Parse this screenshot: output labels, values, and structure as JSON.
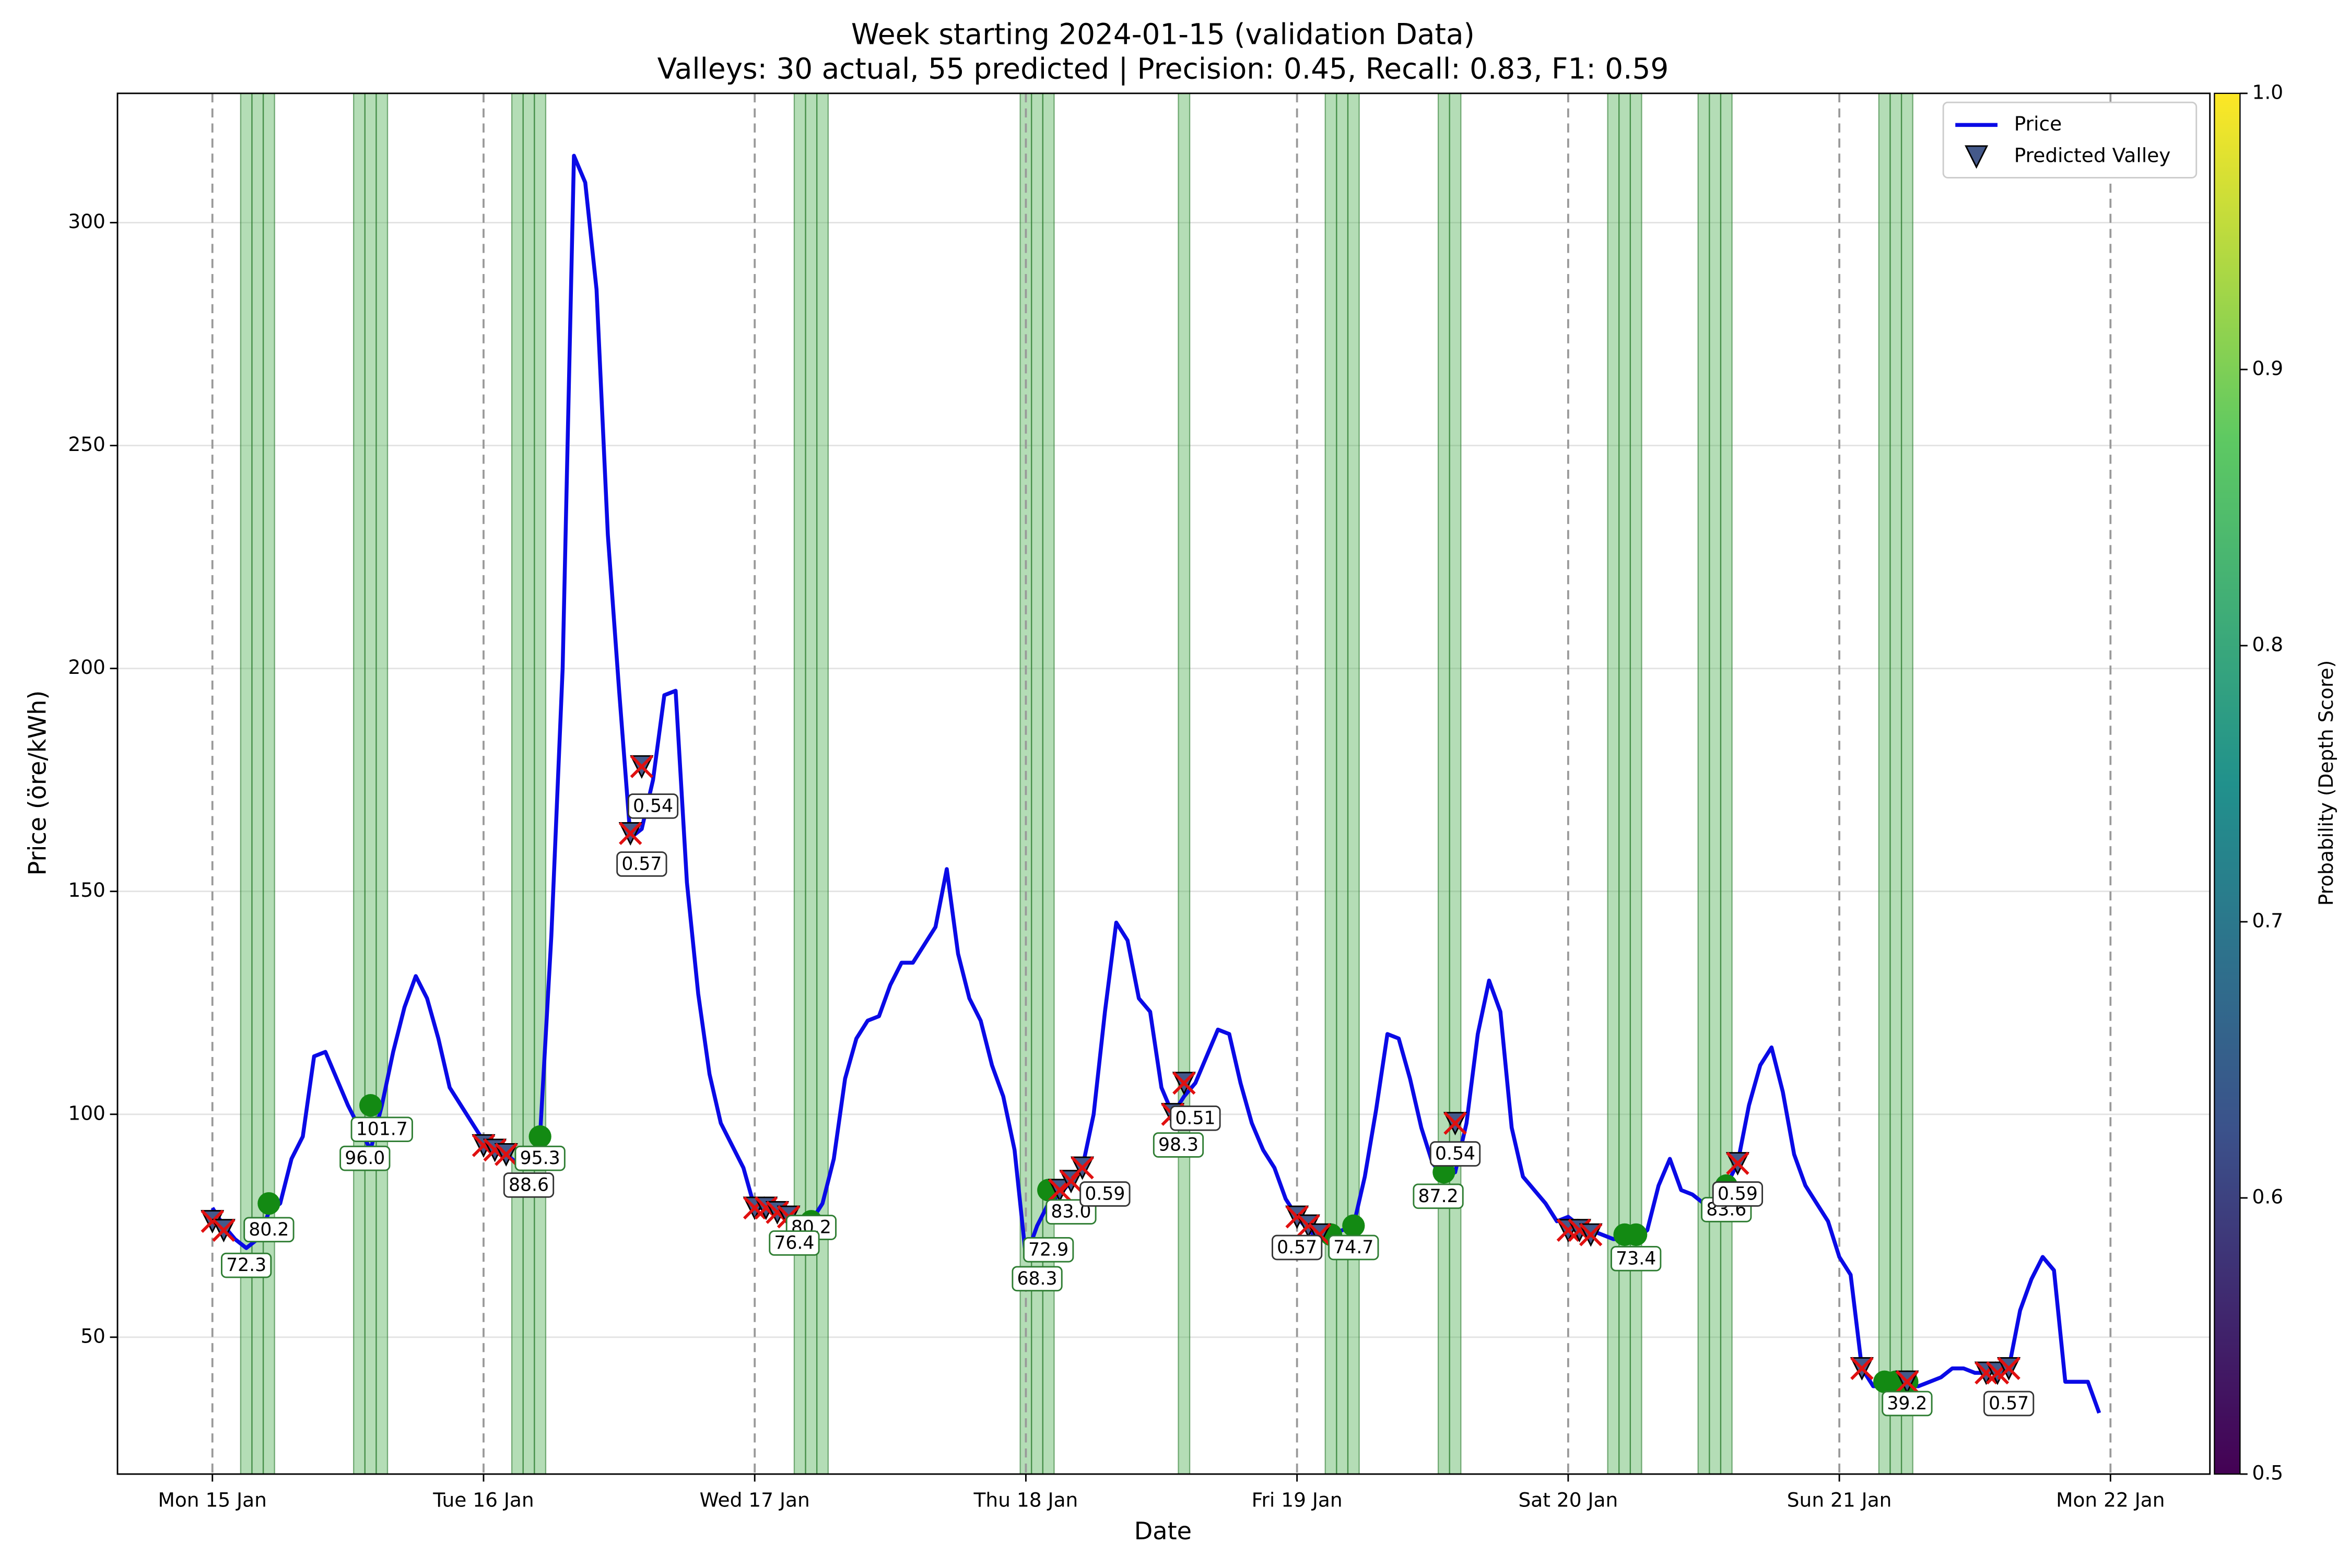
{
  "chart_data": {
    "type": "line",
    "title": "Week starting 2024-01-15 (validation Data)",
    "subtitle": "Valleys: 30 actual, 55 predicted | Precision: 0.45, Recall: 0.83, F1: 0.59",
    "x_label": "Date",
    "y_label": "Price (öre/kWh)",
    "xlim": [
      -8.4,
      176.8
    ],
    "ylim": [
      19.3,
      329
    ],
    "xticks": [
      {
        "value": 0,
        "label": "Mon 15 Jan"
      },
      {
        "value": 24,
        "label": "Tue 16 Jan"
      },
      {
        "value": 48,
        "label": "Wed 17 Jan"
      },
      {
        "value": 72,
        "label": "Thu 18 Jan"
      },
      {
        "value": 96,
        "label": "Fri 19 Jan"
      },
      {
        "value": 120,
        "label": "Sat 20 Jan"
      },
      {
        "value": 144,
        "label": "Sun 21 Jan"
      },
      {
        "value": 168,
        "label": "Mon 22 Jan"
      }
    ],
    "yticks": [
      50,
      100,
      150,
      200,
      250,
      300
    ],
    "grid": true,
    "legend": "upper right",
    "x": [
      0,
      1,
      2,
      3,
      4,
      5,
      6,
      7,
      8,
      9,
      10,
      11,
      12,
      13,
      14,
      15,
      16,
      17,
      18,
      19,
      20,
      21,
      22,
      23,
      24,
      25,
      26,
      27,
      28,
      29,
      30,
      31,
      32,
      33,
      34,
      35,
      36,
      37,
      38,
      39,
      40,
      41,
      42,
      43,
      44,
      45,
      46,
      47,
      48,
      49,
      50,
      51,
      52,
      53,
      54,
      55,
      56,
      57,
      58,
      59,
      60,
      61,
      62,
      63,
      64,
      65,
      66,
      67,
      68,
      69,
      70,
      71,
      72,
      73,
      74,
      75,
      76,
      77,
      78,
      79,
      80,
      81,
      82,
      83,
      84,
      85,
      86,
      87,
      88,
      89,
      90,
      91,
      92,
      93,
      94,
      95,
      96,
      97,
      98,
      99,
      100,
      101,
      102,
      103,
      104,
      105,
      106,
      107,
      108,
      109,
      110,
      111,
      112,
      113,
      114,
      115,
      116,
      117,
      118,
      119,
      120,
      121,
      122,
      123,
      124,
      125,
      126,
      127,
      128,
      129,
      130,
      131,
      132,
      133,
      134,
      135,
      136,
      137,
      138,
      139,
      140,
      141,
      142,
      143,
      144,
      145,
      146,
      147,
      148,
      149,
      150,
      151,
      152,
      153,
      154,
      155,
      156,
      157,
      158,
      159,
      160,
      161,
      162,
      163,
      164,
      165,
      166,
      167
    ],
    "series": [
      {
        "name": "Price",
        "color": "#0a0ae6",
        "values": [
          79,
          75,
          72,
          70,
          72,
          78,
          80,
          90,
          95,
          113,
          114,
          108,
          102,
          97,
          92,
          102,
          114,
          124,
          131,
          126,
          117,
          106,
          102,
          98,
          94,
          93,
          91,
          89,
          90,
          95,
          140,
          200,
          315,
          309,
          285,
          230,
          195,
          162,
          164,
          175,
          194,
          195,
          152,
          127,
          109,
          98,
          93,
          88,
          79,
          79,
          78,
          77,
          76,
          76,
          80,
          90,
          108,
          117,
          121,
          122,
          129,
          134,
          134,
          138,
          142,
          155,
          136,
          126,
          121,
          111,
          104,
          92,
          68,
          75,
          80,
          82,
          85,
          88,
          100,
          123,
          143,
          139,
          126,
          123,
          106,
          100,
          104,
          107,
          113,
          119,
          118,
          107,
          98,
          92,
          88,
          81,
          77,
          74,
          72,
          73,
          74,
          75,
          86,
          101,
          118,
          117,
          108,
          97,
          89,
          86,
          87,
          98,
          118,
          130,
          123,
          97,
          86,
          83,
          80,
          76,
          77,
          75,
          74,
          73,
          72,
          72,
          72,
          74,
          84,
          90,
          83,
          82,
          80,
          81,
          84,
          89,
          102,
          111,
          115,
          105,
          91,
          84,
          80,
          76,
          68,
          64,
          43,
          39,
          39,
          39,
          39,
          39,
          40,
          41,
          43,
          43,
          42,
          42,
          43,
          43,
          56,
          63,
          68,
          65,
          40,
          40,
          40,
          33
        ]
      },
      {
        "name": "Predicted Valley",
        "color": "#44598a",
        "x": [
          0,
          1,
          24,
          25,
          26,
          37,
          38,
          48,
          49,
          50,
          51,
          75,
          76,
          77,
          85,
          86,
          96,
          97,
          98,
          110,
          120,
          121,
          122,
          135,
          146,
          150,
          157,
          158,
          159
        ],
        "values": [
          76,
          74,
          93,
          92,
          91,
          163,
          178,
          79,
          79,
          78,
          77,
          83,
          85,
          88,
          100,
          107,
          77,
          75,
          73,
          98,
          74,
          74,
          73,
          89,
          43,
          40,
          42,
          42,
          43
        ]
      }
    ],
    "matched": {
      "color": "#138a13",
      "x": [
        5,
        14,
        29,
        53,
        74,
        99,
        101,
        109,
        125,
        126,
        134,
        148,
        149,
        150
      ],
      "values": [
        80,
        102,
        95,
        76,
        83,
        73,
        75,
        87,
        73,
        73,
        84,
        40,
        40,
        40
      ]
    },
    "actual_valleys": {
      "color": "#4caf50",
      "x": [
        3,
        4,
        5,
        13,
        14,
        15,
        27,
        28,
        29,
        52,
        53,
        54,
        72,
        73,
        74,
        86,
        99,
        100,
        101,
        109,
        110,
        124,
        125,
        126,
        132,
        133,
        134,
        148,
        149,
        150
      ]
    },
    "annotations": [
      {
        "text": "80.2",
        "x": 5,
        "y": 74,
        "color": "#2e7d32"
      },
      {
        "text": "72.3",
        "x": 3,
        "y": 66,
        "color": "#2e7d32"
      },
      {
        "text": "101.7",
        "x": 15,
        "y": 96.5,
        "color": "#2e7d32"
      },
      {
        "text": "96.0",
        "x": 13.5,
        "y": 90,
        "color": "#2e7d32"
      },
      {
        "text": "95.3",
        "x": 29,
        "y": 90,
        "color": "#2e7d32"
      },
      {
        "text": "88.6",
        "x": 28,
        "y": 84,
        "color": "#333333"
      },
      {
        "text": "0.54",
        "x": 39,
        "y": 169,
        "color": "#333333"
      },
      {
        "text": "0.57",
        "x": 38,
        "y": 156,
        "color": "#333333"
      },
      {
        "text": "80.2",
        "x": 53,
        "y": 74.5,
        "color": "#2e7d32"
      },
      {
        "text": "76.4",
        "x": 51.5,
        "y": 71,
        "color": "#2e7d32"
      },
      {
        "text": "83.0",
        "x": 76,
        "y": 78,
        "color": "#2e7d32"
      },
      {
        "text": "72.9",
        "x": 74,
        "y": 69.5,
        "color": "#2e7d32"
      },
      {
        "text": "68.3",
        "x": 73,
        "y": 63,
        "color": "#2e7d32"
      },
      {
        "text": "0.59",
        "x": 79,
        "y": 82,
        "color": "#333333"
      },
      {
        "text": "0.51",
        "x": 87,
        "y": 99,
        "color": "#333333"
      },
      {
        "text": "98.3",
        "x": 85.5,
        "y": 93,
        "color": "#2e7d32"
      },
      {
        "text": "74.7",
        "x": 101,
        "y": 70,
        "color": "#2e7d32"
      },
      {
        "text": "0.57",
        "x": 96,
        "y": 70,
        "color": "#333333"
      },
      {
        "text": "87.2",
        "x": 108.5,
        "y": 81.5,
        "color": "#2e7d32"
      },
      {
        "text": "0.54",
        "x": 110,
        "y": 91,
        "color": "#333333"
      },
      {
        "text": "73.4",
        "x": 126,
        "y": 67.5,
        "color": "#2e7d32"
      },
      {
        "text": "83.6",
        "x": 134,
        "y": 78.5,
        "color": "#2e7d32"
      },
      {
        "text": "0.59",
        "x": 135,
        "y": 82,
        "color": "#333333"
      },
      {
        "text": "39.2",
        "x": 150,
        "y": 35,
        "color": "#2e7d32"
      },
      {
        "text": "0.57",
        "x": 159,
        "y": 35,
        "color": "#333333"
      }
    ],
    "colorbar": {
      "label": "Probability (Depth Score)",
      "lim": [
        0.5,
        1
      ],
      "ticks": [
        0.5,
        0.6,
        0.7,
        0.8,
        0.9,
        {
          "value": 1,
          "label": "1.0"
        }
      ]
    }
  }
}
